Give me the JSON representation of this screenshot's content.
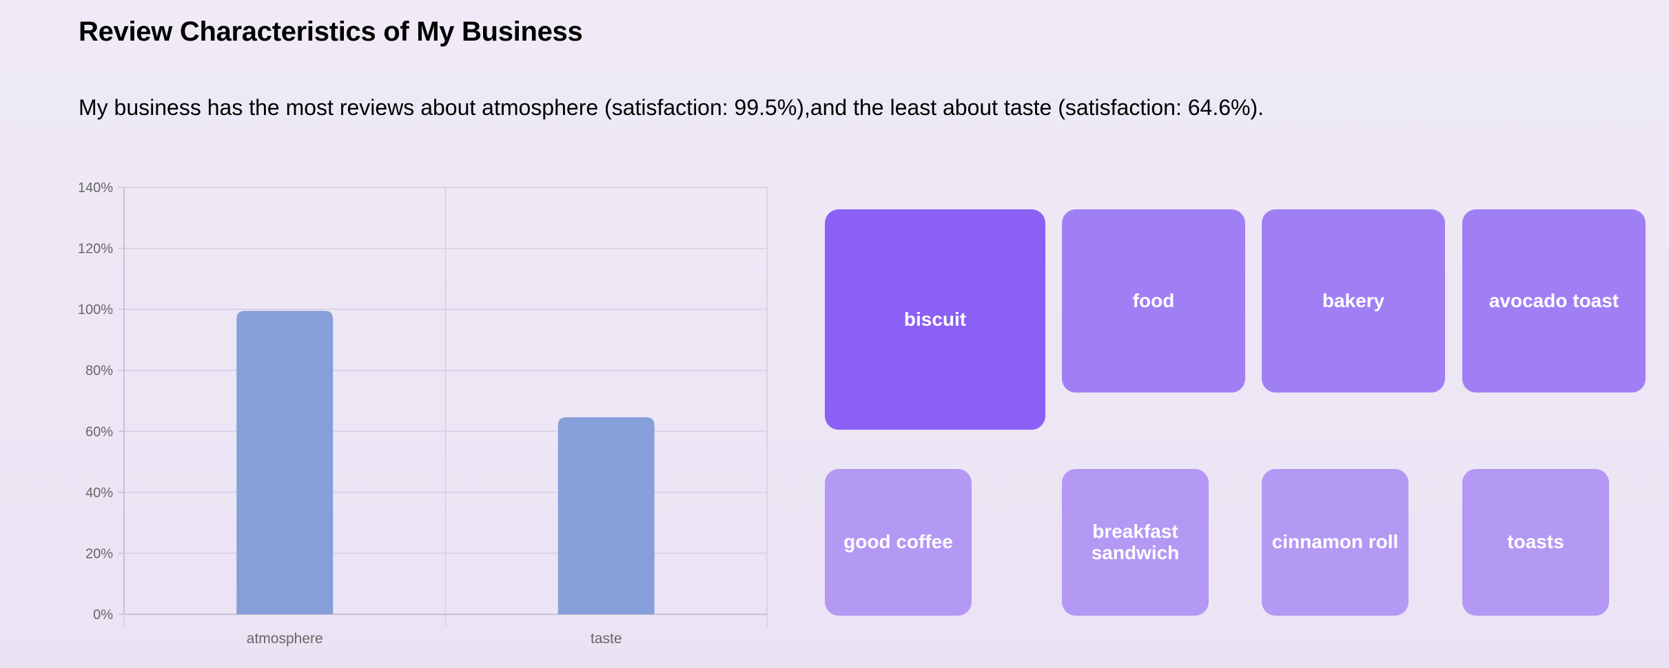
{
  "page": {
    "title": "Review Characteristics of My Business",
    "summary": "My business has the most reviews about atmosphere (satisfaction: 99.5%),and the least about taste (satisfaction: 64.6%)."
  },
  "chart_data": {
    "type": "bar",
    "categories": [
      "atmosphere",
      "taste"
    ],
    "values": [
      99.5,
      64.6
    ],
    "ylim": [
      0,
      140
    ],
    "yticks": [
      "0%",
      "20%",
      "40%",
      "60%",
      "80%",
      "100%",
      "120%",
      "140%"
    ],
    "ytick_values": [
      0,
      20,
      40,
      60,
      80,
      100,
      120,
      140
    ],
    "title": "",
    "xlabel": "",
    "ylabel": "",
    "grid": true,
    "bar_color": "#869fd8"
  },
  "keywords": {
    "items": [
      {
        "label": "biscuit",
        "level": 1
      },
      {
        "label": "food",
        "level": 2
      },
      {
        "label": "bakery",
        "level": 2
      },
      {
        "label": "avocado toast",
        "level": 2
      },
      {
        "label": "good coffee",
        "level": 3
      },
      {
        "label": "breakfast sandwich",
        "level": 3
      },
      {
        "label": "cinnamon roll",
        "level": 3
      },
      {
        "label": "toasts",
        "level": 3
      }
    ],
    "colors": {
      "level1": "#8b60f4",
      "level2": "#a07ff5",
      "level3": "#b398f4",
      "text": "#ffffff"
    }
  }
}
